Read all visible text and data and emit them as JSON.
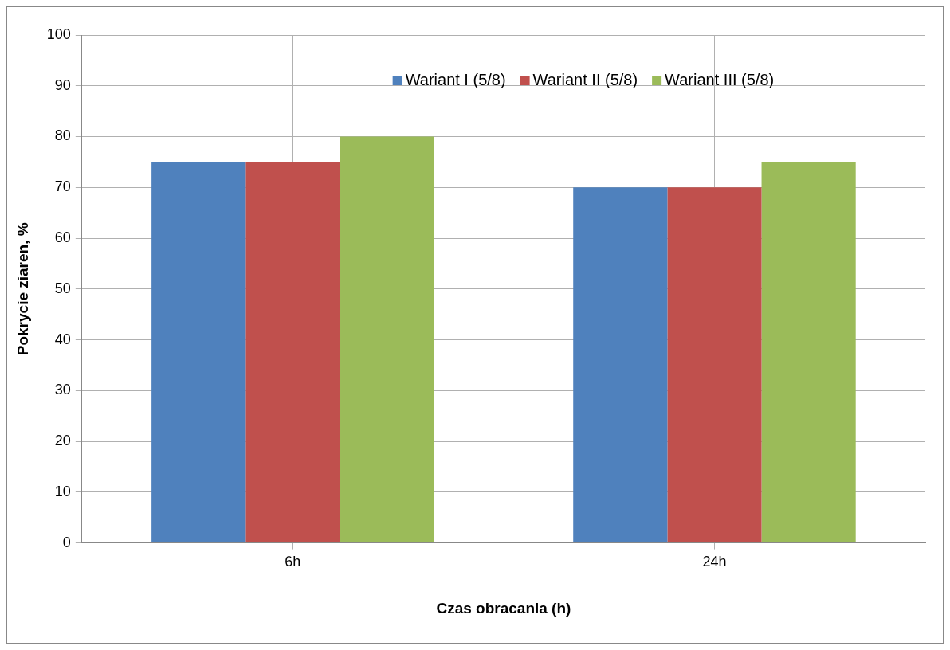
{
  "chart_data": {
    "type": "bar",
    "xlabel": "Czas obracania (h)",
    "ylabel": "Pokrycie ziaren, %",
    "categories": [
      "6h",
      "24h"
    ],
    "series": [
      {
        "name": "Wariant I (5/8)",
        "color": "#4f81bd",
        "values": [
          75,
          70
        ]
      },
      {
        "name": "Wariant II (5/8)",
        "color": "#c0504d",
        "values": [
          75,
          70
        ]
      },
      {
        "name": "Wariant III (5/8)",
        "color": "#9bbb59",
        "values": [
          80,
          75
        ]
      }
    ],
    "ylim": [
      0,
      100
    ],
    "yticks": [
      0,
      10,
      20,
      30,
      40,
      50,
      60,
      70,
      80,
      90,
      100
    ],
    "grid": true,
    "legend": "top"
  }
}
